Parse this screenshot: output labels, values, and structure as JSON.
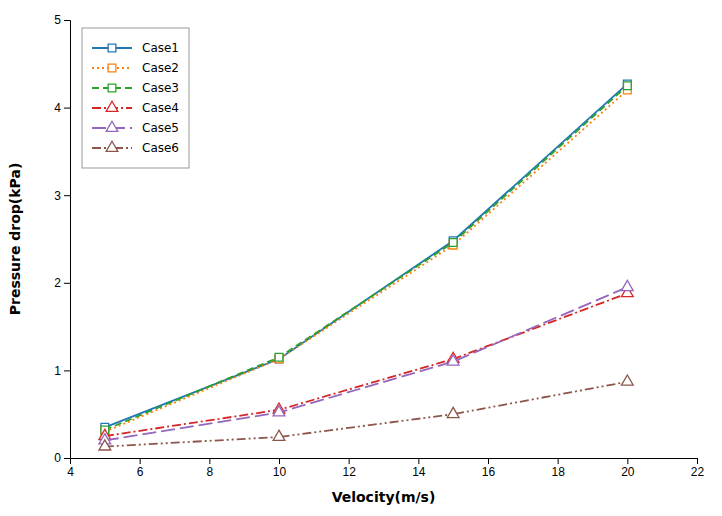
{
  "chart_data": {
    "type": "line",
    "xlabel": "Velocity(m/s)",
    "ylabel": "Pressure drop(kPa)",
    "x": [
      5,
      10,
      15,
      20
    ],
    "series": [
      {
        "name": "Case1",
        "values": [
          0.35,
          1.13,
          2.48,
          4.27
        ],
        "line_style": "solid",
        "marker": "square"
      },
      {
        "name": "Case2",
        "values": [
          0.3,
          1.13,
          2.43,
          4.2
        ],
        "line_style": "dotted",
        "marker": "square"
      },
      {
        "name": "Case3",
        "values": [
          0.32,
          1.15,
          2.46,
          4.25
        ],
        "line_style": "dashed",
        "marker": "square"
      },
      {
        "name": "Case4",
        "values": [
          0.25,
          0.55,
          1.13,
          1.88
        ],
        "line_style": "dashdot",
        "marker": "triangle"
      },
      {
        "name": "Case5",
        "values": [
          0.2,
          0.52,
          1.1,
          1.95
        ],
        "line_style": "longdash",
        "marker": "triangle"
      },
      {
        "name": "Case6",
        "values": [
          0.13,
          0.24,
          0.5,
          0.87
        ],
        "line_style": "dashdotdot",
        "marker": "triangle"
      }
    ],
    "xlim": [
      4,
      22
    ],
    "ylim": [
      0,
      5.0
    ],
    "xticks": [
      4,
      6,
      8,
      10,
      12,
      14,
      16,
      18,
      20,
      22
    ],
    "yticks": [
      0,
      1,
      2,
      3,
      4,
      5
    ],
    "legend": "upper left",
    "grid": false
  }
}
